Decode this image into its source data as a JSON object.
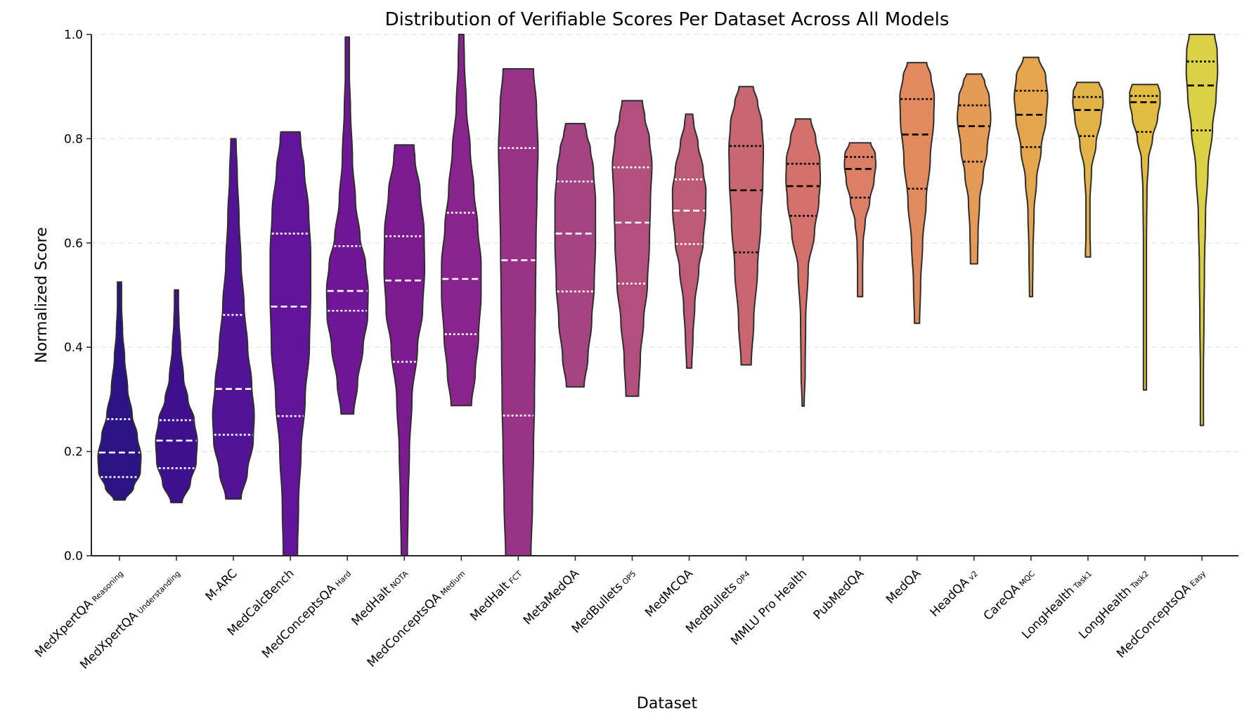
{
  "chart_data": {
    "type": "violin",
    "title": "Distribution of Verifiable Scores Per Dataset Across All Models",
    "xlabel": "Dataset",
    "ylabel": "Normalized Score",
    "ylim": [
      0.0,
      1.0
    ],
    "yticks": [
      "0.0",
      "0.2",
      "0.4",
      "0.6",
      "0.8",
      "1.0"
    ],
    "ytick_values": [
      0.0,
      0.2,
      0.4,
      0.6,
      0.8,
      1.0
    ],
    "grid": "horizontal-dashed",
    "colormap": "plasma",
    "inner": "quartile",
    "series": [
      {
        "name": "MedXpertQA",
        "sub": "Reasoning",
        "color": "#2b1383",
        "inner_color": "#ffffff",
        "min": 0.107,
        "q1": 0.151,
        "median": 0.198,
        "q3": 0.262,
        "max": 0.525,
        "shape": [
          [
            0.107,
            0.22
          ],
          [
            0.13,
            0.55
          ],
          [
            0.16,
            0.82
          ],
          [
            0.19,
            0.85
          ],
          [
            0.23,
            0.7
          ],
          [
            0.27,
            0.5
          ],
          [
            0.32,
            0.32
          ],
          [
            0.38,
            0.2
          ],
          [
            0.43,
            0.12
          ],
          [
            0.48,
            0.08
          ],
          [
            0.525,
            0.08
          ]
        ]
      },
      {
        "name": "MedXpertQA",
        "sub": "Understanding",
        "color": "#3e0f8e",
        "inner_color": "#ffffff",
        "min": 0.102,
        "q1": 0.168,
        "median": 0.221,
        "q3": 0.26,
        "max": 0.51,
        "shape": [
          [
            0.102,
            0.22
          ],
          [
            0.14,
            0.55
          ],
          [
            0.18,
            0.78
          ],
          [
            0.22,
            0.82
          ],
          [
            0.26,
            0.7
          ],
          [
            0.3,
            0.45
          ],
          [
            0.34,
            0.28
          ],
          [
            0.4,
            0.16
          ],
          [
            0.45,
            0.1
          ],
          [
            0.48,
            0.08
          ],
          [
            0.51,
            0.08
          ]
        ]
      },
      {
        "name": "M-ARC",
        "sub": "",
        "color": "#521396",
        "inner_color": "#ffffff",
        "min": 0.109,
        "q1": 0.232,
        "median": 0.32,
        "q3": 0.462,
        "max": 0.8,
        "shape": [
          [
            0.109,
            0.3
          ],
          [
            0.16,
            0.55
          ],
          [
            0.22,
            0.78
          ],
          [
            0.27,
            0.82
          ],
          [
            0.33,
            0.72
          ],
          [
            0.4,
            0.56
          ],
          [
            0.48,
            0.42
          ],
          [
            0.56,
            0.3
          ],
          [
            0.65,
            0.22
          ],
          [
            0.73,
            0.15
          ],
          [
            0.8,
            0.1
          ]
        ]
      },
      {
        "name": "MedCalcBench",
        "sub": "",
        "color": "#62149a",
        "inner_color": "#ffffff",
        "min": 0.0,
        "q1": 0.268,
        "median": 0.478,
        "q3": 0.618,
        "max": 0.813,
        "shape": [
          [
            0.0,
            0.28
          ],
          [
            0.1,
            0.32
          ],
          [
            0.2,
            0.42
          ],
          [
            0.3,
            0.58
          ],
          [
            0.4,
            0.75
          ],
          [
            0.5,
            0.8
          ],
          [
            0.58,
            0.8
          ],
          [
            0.66,
            0.72
          ],
          [
            0.74,
            0.55
          ],
          [
            0.8,
            0.4
          ],
          [
            0.813,
            0.38
          ]
        ]
      },
      {
        "name": "MedConceptsQA",
        "sub": "Hard",
        "color": "#6e1693",
        "inner_color": "#ffffff",
        "min": 0.272,
        "q1": 0.47,
        "median": 0.508,
        "q3": 0.594,
        "max": 0.995,
        "shape": [
          [
            0.272,
            0.25
          ],
          [
            0.33,
            0.4
          ],
          [
            0.4,
            0.62
          ],
          [
            0.46,
            0.8
          ],
          [
            0.51,
            0.82
          ],
          [
            0.56,
            0.72
          ],
          [
            0.61,
            0.5
          ],
          [
            0.68,
            0.32
          ],
          [
            0.76,
            0.2
          ],
          [
            0.86,
            0.12
          ],
          [
            0.92,
            0.08
          ],
          [
            0.995,
            0.08
          ]
        ]
      },
      {
        "name": "MedHalt",
        "sub": "NOTA",
        "color": "#7c1a8f",
        "inner_color": "#ffffff",
        "min": 0.0,
        "q1": 0.372,
        "median": 0.528,
        "q3": 0.613,
        "max": 0.788,
        "shape": [
          [
            0.0,
            0.12
          ],
          [
            0.1,
            0.15
          ],
          [
            0.2,
            0.2
          ],
          [
            0.3,
            0.3
          ],
          [
            0.4,
            0.52
          ],
          [
            0.47,
            0.72
          ],
          [
            0.55,
            0.8
          ],
          [
            0.62,
            0.78
          ],
          [
            0.7,
            0.62
          ],
          [
            0.76,
            0.42
          ],
          [
            0.788,
            0.38
          ]
        ]
      },
      {
        "name": "MedConceptsQA",
        "sub": "Medium",
        "color": "#8a248c",
        "inner_color": "#ffffff",
        "min": 0.288,
        "q1": 0.425,
        "median": 0.531,
        "q3": 0.658,
        "max": 1.0,
        "shape": [
          [
            0.288,
            0.4
          ],
          [
            0.35,
            0.55
          ],
          [
            0.42,
            0.68
          ],
          [
            0.5,
            0.78
          ],
          [
            0.56,
            0.78
          ],
          [
            0.63,
            0.65
          ],
          [
            0.7,
            0.5
          ],
          [
            0.78,
            0.35
          ],
          [
            0.86,
            0.2
          ],
          [
            0.95,
            0.12
          ],
          [
            1.0,
            0.1
          ]
        ]
      },
      {
        "name": "MedHalt",
        "sub": "FCT",
        "color": "#993388",
        "inner_color": "#ffffff",
        "min": 0.0,
        "q1": 0.269,
        "median": 0.567,
        "q3": 0.782,
        "max": 0.934,
        "shape": [
          [
            0.0,
            0.5
          ],
          [
            0.1,
            0.56
          ],
          [
            0.2,
            0.6
          ],
          [
            0.3,
            0.64
          ],
          [
            0.4,
            0.66
          ],
          [
            0.5,
            0.68
          ],
          [
            0.6,
            0.7
          ],
          [
            0.7,
            0.74
          ],
          [
            0.78,
            0.78
          ],
          [
            0.86,
            0.72
          ],
          [
            0.934,
            0.6
          ]
        ]
      },
      {
        "name": "MetaMedQA",
        "sub": "",
        "color": "#a64483",
        "inner_color": "#ffffff",
        "min": 0.324,
        "q1": 0.507,
        "median": 0.618,
        "q3": 0.718,
        "max": 0.829,
        "shape": [
          [
            0.324,
            0.35
          ],
          [
            0.38,
            0.5
          ],
          [
            0.45,
            0.65
          ],
          [
            0.52,
            0.75
          ],
          [
            0.6,
            0.8
          ],
          [
            0.68,
            0.8
          ],
          [
            0.74,
            0.72
          ],
          [
            0.78,
            0.6
          ],
          [
            0.81,
            0.45
          ],
          [
            0.829,
            0.38
          ]
        ]
      },
      {
        "name": "MedBullets",
        "sub": "OP5",
        "color": "#b24f7c",
        "inner_color": "#ffffff",
        "min": 0.306,
        "q1": 0.522,
        "median": 0.639,
        "q3": 0.745,
        "max": 0.873,
        "shape": [
          [
            0.306,
            0.25
          ],
          [
            0.38,
            0.32
          ],
          [
            0.45,
            0.45
          ],
          [
            0.52,
            0.6
          ],
          [
            0.6,
            0.68
          ],
          [
            0.68,
            0.72
          ],
          [
            0.75,
            0.78
          ],
          [
            0.8,
            0.68
          ],
          [
            0.84,
            0.5
          ],
          [
            0.873,
            0.4
          ]
        ]
      },
      {
        "name": "MedMCQA",
        "sub": "",
        "color": "#bd5a77",
        "inner_color": "#ffffff",
        "min": 0.36,
        "q1": 0.598,
        "median": 0.662,
        "q3": 0.722,
        "max": 0.847,
        "shape": [
          [
            0.36,
            0.1
          ],
          [
            0.42,
            0.15
          ],
          [
            0.48,
            0.22
          ],
          [
            0.55,
            0.38
          ],
          [
            0.6,
            0.55
          ],
          [
            0.66,
            0.65
          ],
          [
            0.7,
            0.66
          ],
          [
            0.74,
            0.55
          ],
          [
            0.79,
            0.35
          ],
          [
            0.83,
            0.18
          ],
          [
            0.847,
            0.14
          ]
        ]
      },
      {
        "name": "MedBullets",
        "sub": "OP4",
        "color": "#c86770",
        "inner_color": "#000000",
        "min": 0.366,
        "q1": 0.582,
        "median": 0.701,
        "q3": 0.786,
        "max": 0.9,
        "shape": [
          [
            0.366,
            0.2
          ],
          [
            0.45,
            0.3
          ],
          [
            0.55,
            0.45
          ],
          [
            0.64,
            0.58
          ],
          [
            0.72,
            0.66
          ],
          [
            0.78,
            0.68
          ],
          [
            0.83,
            0.62
          ],
          [
            0.87,
            0.45
          ],
          [
            0.9,
            0.28
          ]
        ]
      },
      {
        "name": "MMLU Pro Health",
        "sub": "",
        "color": "#d4716b",
        "inner_color": "#000000",
        "min": 0.287,
        "q1": 0.652,
        "median": 0.709,
        "q3": 0.752,
        "max": 0.838,
        "shape": [
          [
            0.287,
            0.04
          ],
          [
            0.35,
            0.08
          ],
          [
            0.45,
            0.1
          ],
          [
            0.55,
            0.2
          ],
          [
            0.62,
            0.45
          ],
          [
            0.68,
            0.62
          ],
          [
            0.72,
            0.68
          ],
          [
            0.76,
            0.66
          ],
          [
            0.8,
            0.5
          ],
          [
            0.838,
            0.3
          ]
        ]
      },
      {
        "name": "PubMedQA",
        "sub": "",
        "color": "#db7f66",
        "inner_color": "#000000",
        "min": 0.497,
        "q1": 0.687,
        "median": 0.742,
        "q3": 0.765,
        "max": 0.792,
        "shape": [
          [
            0.497,
            0.1
          ],
          [
            0.55,
            0.1
          ],
          [
            0.6,
            0.12
          ],
          [
            0.64,
            0.2
          ],
          [
            0.68,
            0.38
          ],
          [
            0.72,
            0.55
          ],
          [
            0.75,
            0.62
          ],
          [
            0.77,
            0.6
          ],
          [
            0.792,
            0.42
          ]
        ]
      },
      {
        "name": "MedQA",
        "sub": "",
        "color": "#e08a5e",
        "inner_color": "#000000",
        "min": 0.446,
        "q1": 0.704,
        "median": 0.808,
        "q3": 0.876,
        "max": 0.946,
        "shape": [
          [
            0.446,
            0.1
          ],
          [
            0.52,
            0.14
          ],
          [
            0.6,
            0.22
          ],
          [
            0.68,
            0.36
          ],
          [
            0.76,
            0.52
          ],
          [
            0.84,
            0.66
          ],
          [
            0.88,
            0.68
          ],
          [
            0.92,
            0.55
          ],
          [
            0.946,
            0.38
          ]
        ]
      },
      {
        "name": "HeadQA",
        "sub": "v2",
        "color": "#e59a55",
        "inner_color": "#000000",
        "min": 0.56,
        "q1": 0.756,
        "median": 0.824,
        "q3": 0.864,
        "max": 0.924,
        "shape": [
          [
            0.56,
            0.14
          ],
          [
            0.62,
            0.16
          ],
          [
            0.68,
            0.22
          ],
          [
            0.73,
            0.36
          ],
          [
            0.78,
            0.52
          ],
          [
            0.84,
            0.66
          ],
          [
            0.88,
            0.6
          ],
          [
            0.91,
            0.42
          ],
          [
            0.924,
            0.3
          ]
        ]
      },
      {
        "name": "CareQA",
        "sub": "MQC",
        "color": "#e5a54d",
        "inner_color": "#000000",
        "min": 0.497,
        "q1": 0.784,
        "median": 0.846,
        "q3": 0.892,
        "max": 0.956,
        "shape": [
          [
            0.497,
            0.06
          ],
          [
            0.58,
            0.08
          ],
          [
            0.66,
            0.12
          ],
          [
            0.72,
            0.22
          ],
          [
            0.78,
            0.4
          ],
          [
            0.84,
            0.6
          ],
          [
            0.88,
            0.66
          ],
          [
            0.92,
            0.58
          ],
          [
            0.956,
            0.3
          ]
        ]
      },
      {
        "name": "LongHealth",
        "sub": "Task1",
        "color": "#e3b34a",
        "inner_color": "#000000",
        "min": 0.573,
        "q1": 0.805,
        "median": 0.855,
        "q3": 0.88,
        "max": 0.908,
        "shape": [
          [
            0.573,
            0.1
          ],
          [
            0.62,
            0.08
          ],
          [
            0.68,
            0.08
          ],
          [
            0.74,
            0.14
          ],
          [
            0.79,
            0.32
          ],
          [
            0.84,
            0.52
          ],
          [
            0.87,
            0.6
          ],
          [
            0.89,
            0.58
          ],
          [
            0.908,
            0.44
          ]
        ]
      },
      {
        "name": "LongHealth",
        "sub": "Task2",
        "color": "#e0bc43",
        "inner_color": "#000000",
        "min": 0.318,
        "q1": 0.813,
        "median": 0.87,
        "q3": 0.882,
        "max": 0.904,
        "shape": [
          [
            0.318,
            0.06
          ],
          [
            0.45,
            0.06
          ],
          [
            0.6,
            0.06
          ],
          [
            0.7,
            0.08
          ],
          [
            0.76,
            0.14
          ],
          [
            0.8,
            0.3
          ],
          [
            0.84,
            0.5
          ],
          [
            0.87,
            0.6
          ],
          [
            0.89,
            0.6
          ],
          [
            0.904,
            0.5
          ]
        ]
      },
      {
        "name": "MedConceptsQA",
        "sub": "Easy",
        "color": "#dcd045",
        "inner_color": "#000000",
        "min": 0.25,
        "q1": 0.816,
        "median": 0.902,
        "q3": 0.948,
        "max": 1.0,
        "shape": [
          [
            0.25,
            0.06
          ],
          [
            0.35,
            0.06
          ],
          [
            0.45,
            0.08
          ],
          [
            0.55,
            0.1
          ],
          [
            0.65,
            0.14
          ],
          [
            0.74,
            0.24
          ],
          [
            0.82,
            0.42
          ],
          [
            0.88,
            0.56
          ],
          [
            0.93,
            0.62
          ],
          [
            0.97,
            0.6
          ],
          [
            1.0,
            0.5
          ]
        ]
      }
    ]
  }
}
